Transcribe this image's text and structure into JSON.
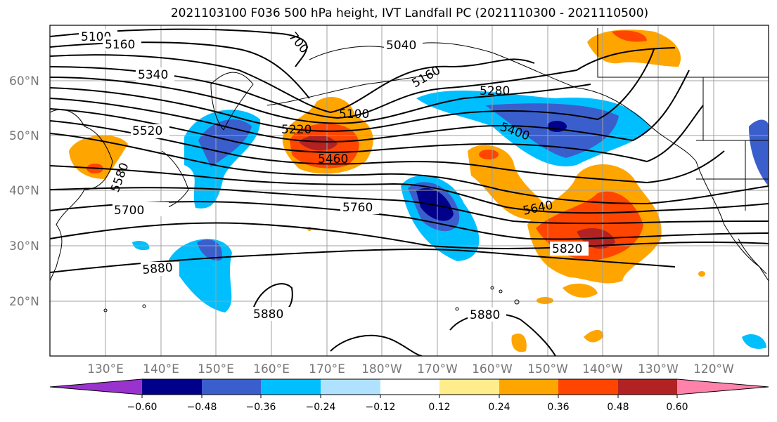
{
  "title": "2021103100 F036 500 hPa height, IVT Landfall PC (2021110300 - 2021110500)",
  "map": {
    "lon_range_east": [
      120,
      250
    ],
    "lat_range": [
      10,
      70
    ],
    "lat_labels": [
      "60°N",
      "50°N",
      "40°N",
      "30°N",
      "20°N"
    ],
    "lon_labels": [
      "130°E",
      "140°E",
      "150°E",
      "160°E",
      "170°E",
      "180°W",
      "170°W",
      "160°W",
      "150°W",
      "140°W",
      "130°W",
      "120°W"
    ],
    "contour_labels": [
      "5100",
      "5160",
      "5340",
      "5520",
      "5580",
      "5700",
      "5040",
      "5160",
      "5280",
      "5220",
      "5100",
      "5460",
      "5400",
      "5760",
      "5640",
      "5820",
      "5880",
      "5880",
      "5880",
      "700"
    ]
  },
  "colorbar": {
    "tick_labels": [
      "−0.60",
      "−0.48",
      "−0.36",
      "−0.24",
      "−0.12",
      "0.12",
      "0.24",
      "0.36",
      "0.48",
      "0.60"
    ],
    "colors": [
      "#9a32cd",
      "#00008b",
      "#3a5fcd",
      "#00bfff",
      "#b0e2ff",
      "#ffffff",
      "#ffec8b",
      "#ffa500",
      "#ff4500",
      "#b22222",
      "#ff82ab"
    ]
  }
}
